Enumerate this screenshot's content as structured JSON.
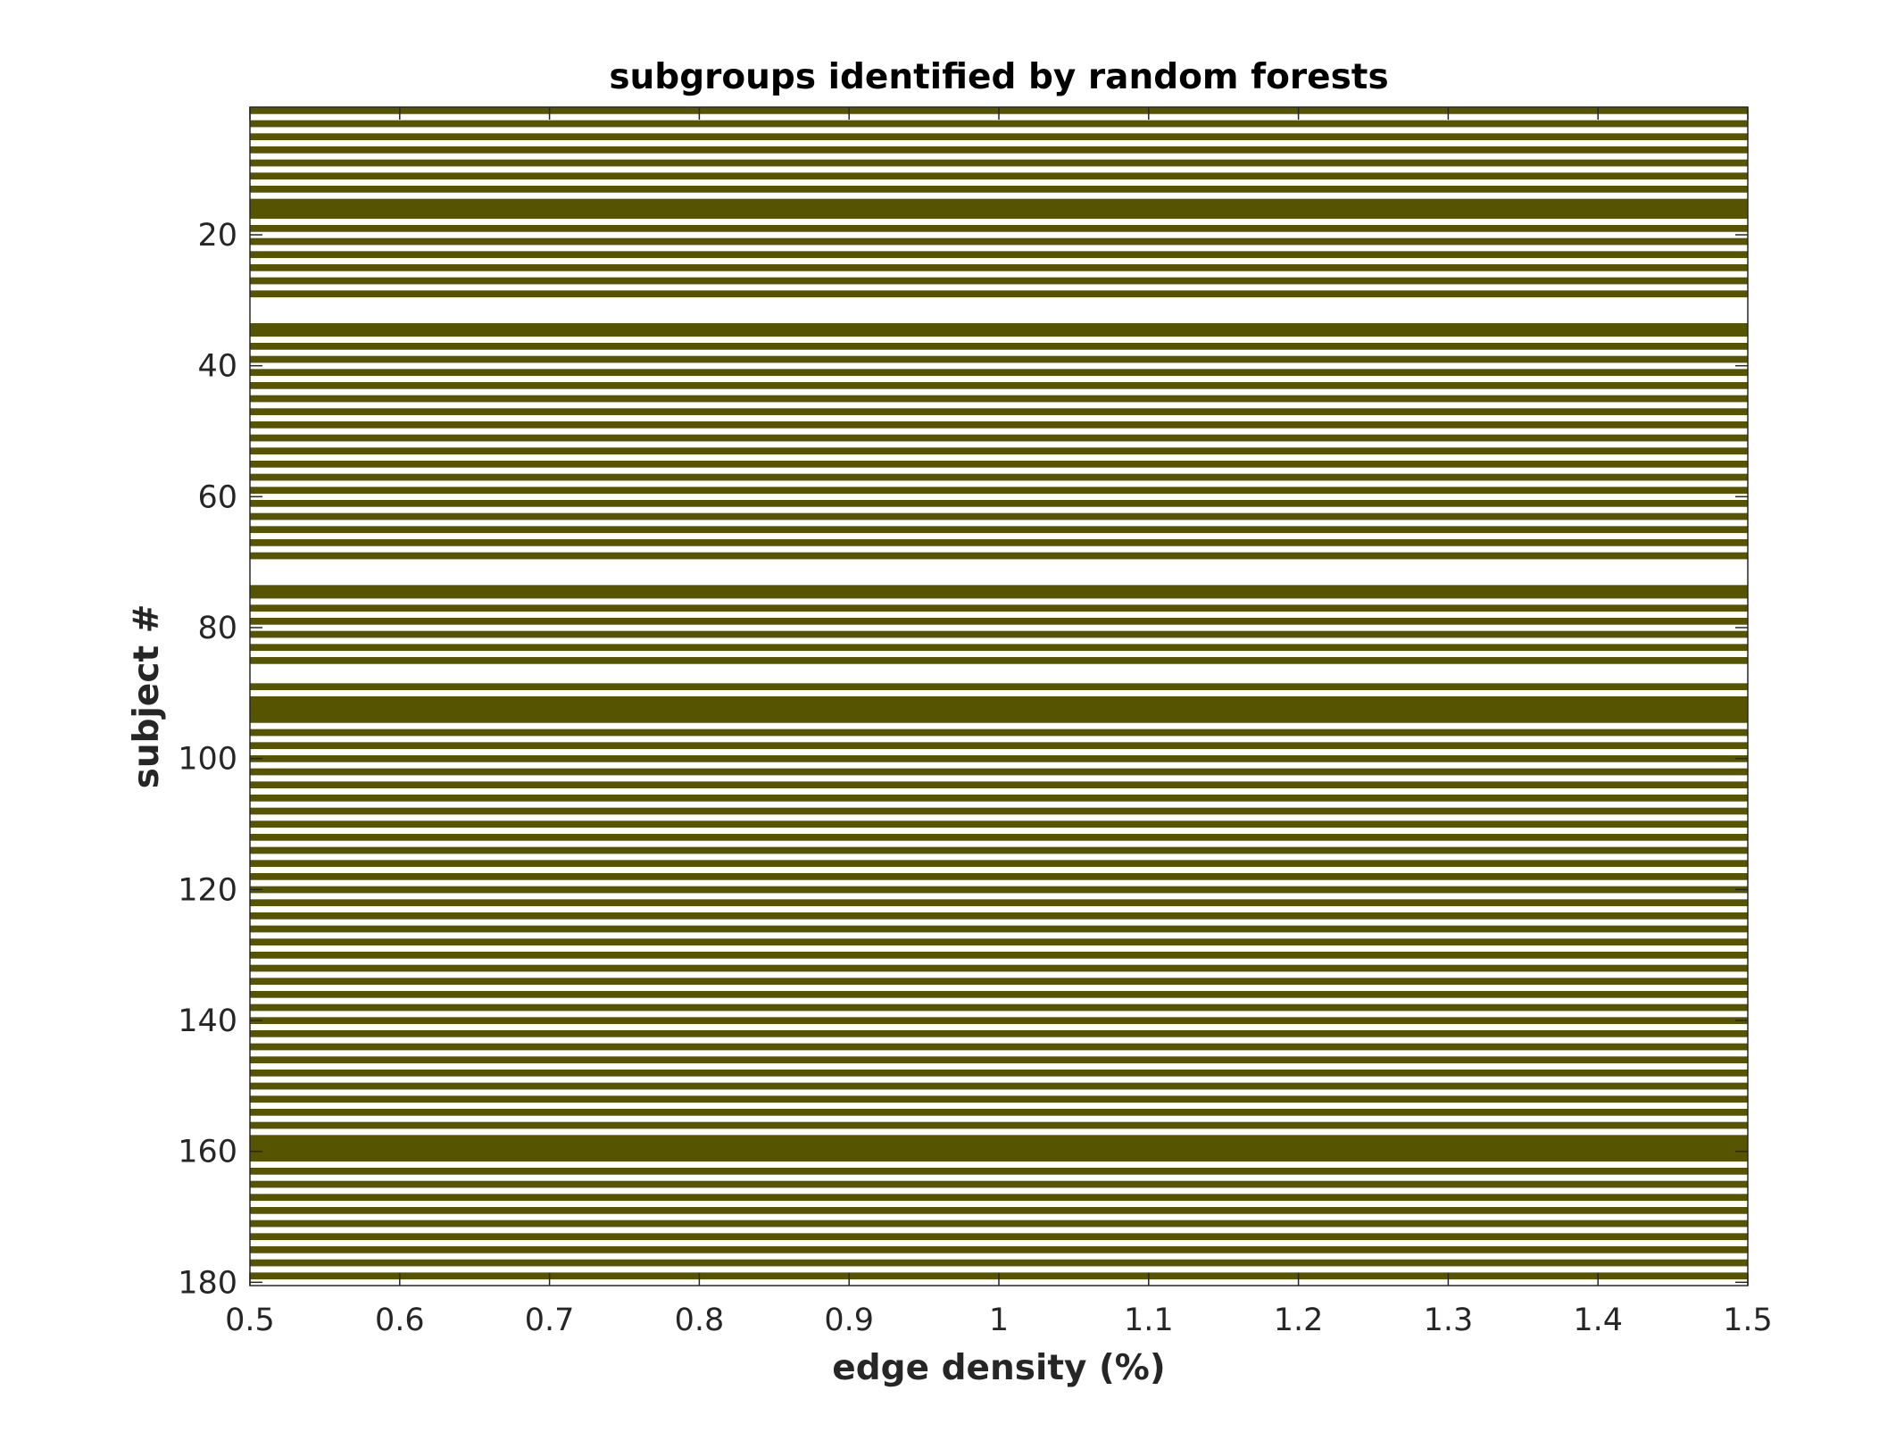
{
  "chart_data": {
    "type": "heatmap",
    "title": "subgroups identified by random forests",
    "xlabel": "edge density (%)",
    "ylabel": "subject #",
    "xlim": [
      0.5,
      1.5
    ],
    "ylim": [
      0.5,
      180.5
    ],
    "y_direction": "reversed",
    "x_ticks": [
      0.5,
      0.6,
      0.7,
      0.8,
      0.9,
      1,
      1.1,
      1.2,
      1.3,
      1.4,
      1.5
    ],
    "x_tick_labels": [
      "0.5",
      "0.6",
      "0.7",
      "0.8",
      "0.9",
      "1",
      "1.1",
      "1.2",
      "1.3",
      "1.4",
      "1.5"
    ],
    "y_ticks": [
      20,
      40,
      60,
      80,
      100,
      120,
      140,
      160,
      180
    ],
    "y_tick_labels": [
      "20",
      "40",
      "60",
      "80",
      "100",
      "120",
      "140",
      "160",
      "180"
    ],
    "colors": {
      "subgroup": "#575400",
      "other": "#ffffff"
    },
    "highlighted_subjects": [
      1,
      3,
      5,
      7,
      9,
      11,
      13,
      15,
      16,
      17,
      19,
      21,
      23,
      25,
      27,
      29,
      34,
      35,
      37,
      39,
      41,
      43,
      45,
      47,
      49,
      51,
      53,
      55,
      57,
      59,
      61,
      63,
      65,
      67,
      69,
      74,
      75,
      77,
      79,
      81,
      83,
      85,
      89,
      91,
      92,
      93,
      94,
      96,
      98,
      100,
      102,
      104,
      106,
      108,
      110,
      112,
      114,
      116,
      118,
      120,
      122,
      124,
      126,
      128,
      130,
      132,
      134,
      136,
      138,
      140,
      142,
      144,
      146,
      148,
      150,
      152,
      154,
      156,
      158,
      159,
      160,
      161,
      163,
      165,
      167,
      169,
      171,
      173,
      175,
      177,
      179
    ]
  }
}
